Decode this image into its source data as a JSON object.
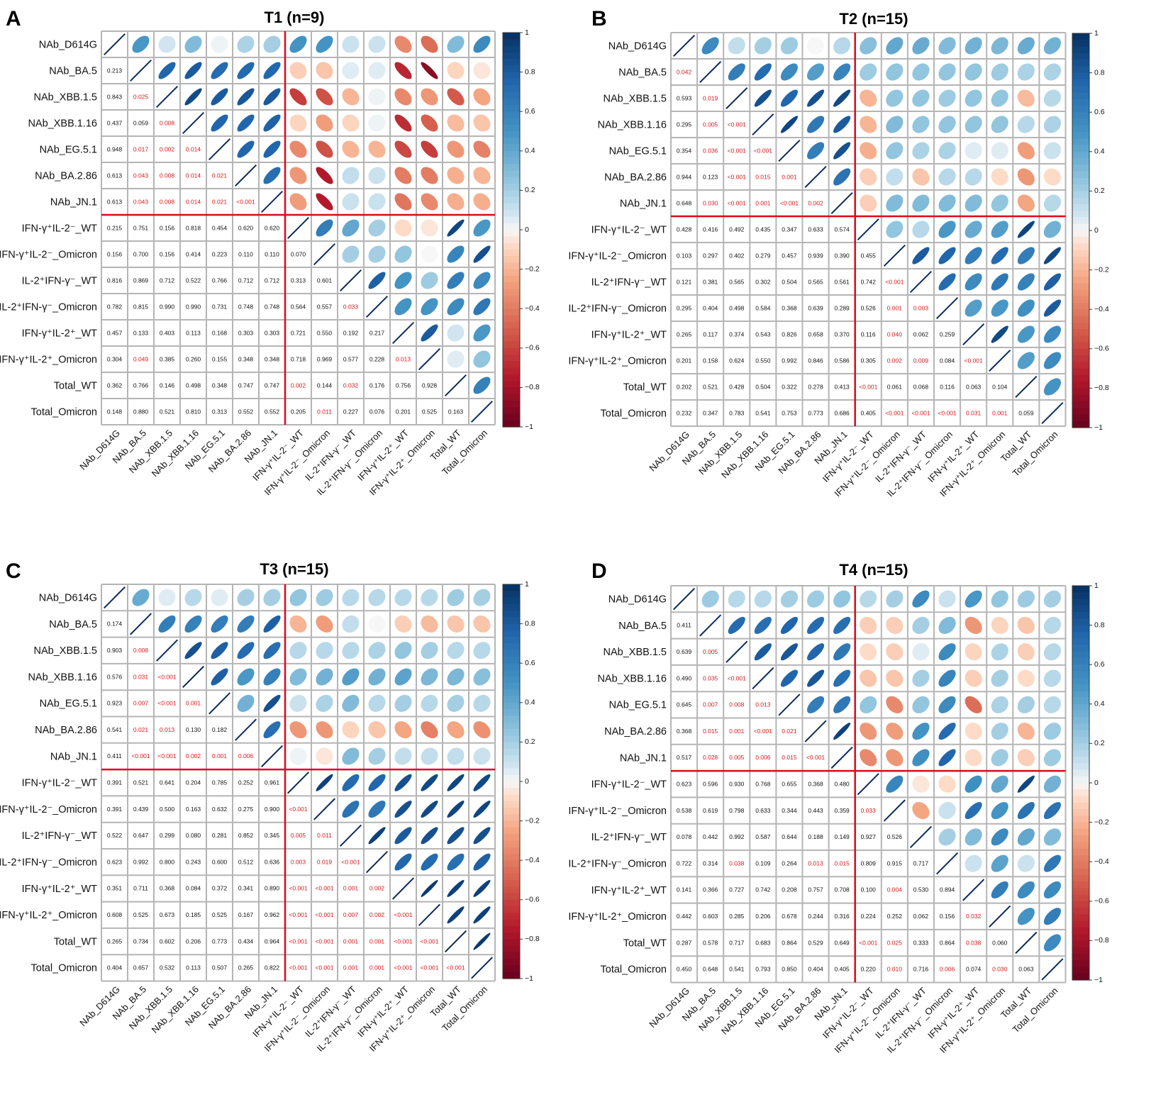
{
  "figure": {
    "variables": [
      "NAb_D614G",
      "NAb_BA.5",
      "NAb_XBB.1.5",
      "NAb_XBB.1.16",
      "NAb_EG.5.1",
      "NAb_BA.2.86",
      "NAb_JN.1",
      "IFN-γ⁺IL-2⁻_WT",
      "IFN-γ⁺IL-2⁻_Omicron",
      "IL-2⁺IFN-γ⁻_WT",
      "IL-2⁺IFN-γ⁻_Omicron",
      "IFN-γ⁺IL-2⁺_WT",
      "IFN-γ⁺IL-2⁺_Omicron",
      "Total_WT",
      "Total_Omicron"
    ],
    "colorbar_ticks": [
      "1",
      "0.8",
      "0.6",
      "0.4",
      "0.2",
      "0",
      "−0.2",
      "−0.4",
      "−0.6",
      "−0.8",
      "−1"
    ],
    "colors": {
      "positive": "#053061",
      "negative": "#67001f",
      "neutral": "#f7f7f7",
      "grid": "#b5b5b5",
      "divider": "#e2061b",
      "significant_text": "#d7191c",
      "normal_text": "#111111"
    }
  },
  "chart_data": [
    {
      "type": "heatmap",
      "panel": "A",
      "title": "T1 (n=9)",
      "split_after": 7,
      "correlation_range": [
        -1,
        1
      ],
      "upper_r": [
        [
          0.48,
          0.08,
          0.3,
          0.02,
          0.18,
          0.2,
          0.5,
          0.5,
          0.1,
          0.1,
          -0.35,
          -0.45,
          0.3,
          0.55
        ],
        [
          0.75,
          0.8,
          0.72,
          0.73,
          0.74,
          -0.12,
          -0.15,
          0.05,
          0.05,
          -0.7,
          -0.88,
          -0.1,
          -0.05
        ],
        [
          0.88,
          0.8,
          0.82,
          0.8,
          -0.62,
          -0.55,
          -0.2,
          0.02,
          -0.35,
          -0.3,
          -0.52,
          -0.25
        ],
        [
          0.75,
          0.75,
          0.77,
          -0.1,
          -0.28,
          -0.1,
          0.02,
          -0.68,
          -0.5,
          -0.18,
          -0.15
        ],
        [
          0.75,
          0.75,
          -0.35,
          -0.55,
          -0.2,
          -0.2,
          -0.58,
          -0.62,
          -0.3,
          -0.38
        ],
        [
          0.7,
          -0.3,
          -0.75,
          0.12,
          0.1,
          -0.4,
          -0.4,
          -0.22,
          -0.2
        ],
        [
          -0.28,
          -0.75,
          0.1,
          0.1,
          -0.42,
          -0.35,
          -0.22,
          -0.22
        ],
        [
          0.62,
          0.4,
          0.2,
          -0.08,
          -0.05,
          0.9,
          0.48
        ],
        [
          0.2,
          0.2,
          0.25,
          0.0,
          0.58,
          0.85
        ],
        [
          0.78,
          0.5,
          0.22,
          0.62,
          0.55
        ],
        [
          0.5,
          0.5,
          0.55,
          0.65
        ],
        [
          0.8,
          0.08,
          0.48
        ],
        [
          0.05,
          0.25
        ],
        [
          0.6
        ]
      ],
      "lower_p": [
        [
          "0.213"
        ],
        [
          "0.843",
          "0.025"
        ],
        [
          "0.437",
          "0.059",
          "0.008"
        ],
        [
          "0.948",
          "0.017",
          "0.002",
          "0.014"
        ],
        [
          "0.613",
          "0.043",
          "0.008",
          "0.014",
          "0.021"
        ],
        [
          "0.613",
          "0.043",
          "0.008",
          "0.014",
          "0.021",
          "<0.001"
        ],
        [
          "0.215",
          "0.751",
          "0.156",
          "0.818",
          "0.454",
          "0.620",
          "0.620"
        ],
        [
          "0.156",
          "0.700",
          "0.156",
          "0.414",
          "0.223",
          "0.110",
          "0.110",
          "0.070"
        ],
        [
          "0.816",
          "0.869",
          "0.712",
          "0.522",
          "0.766",
          "0.712",
          "0.712",
          "0.313",
          "0.601"
        ],
        [
          "0.782",
          "0.815",
          "0.990",
          "0.990",
          "0.731",
          "0.748",
          "0.748",
          "0.564",
          "0.557",
          "0.033"
        ],
        [
          "0.457",
          "0.133",
          "0.403",
          "0.113",
          "0.168",
          "0.303",
          "0.303",
          "0.721",
          "0.550",
          "0.192",
          "0.217"
        ],
        [
          "0.304",
          "0.049",
          "0.385",
          "0.260",
          "0.155",
          "0.348",
          "0.348",
          "0.718",
          "0.969",
          "0.577",
          "0.228",
          "0.013"
        ],
        [
          "0.362",
          "0.766",
          "0.146",
          "0.498",
          "0.348",
          "0.747",
          "0.747",
          "0.002",
          "0.144",
          "0.032",
          "0.176",
          "0.756",
          "0.928"
        ],
        [
          "0.148",
          "0.880",
          "0.521",
          "0.810",
          "0.313",
          "0.552",
          "0.552",
          "0.205",
          "0.011",
          "0.227",
          "0.076",
          "0.201",
          "0.525",
          "0.163"
        ]
      ]
    },
    {
      "type": "heatmap",
      "panel": "B",
      "title": "T2 (n=15)",
      "split_after": 7,
      "correlation_range": [
        -1,
        1
      ],
      "upper_r": [
        [
          0.55,
          0.12,
          0.2,
          0.22,
          0.0,
          0.15,
          0.28,
          0.4,
          0.38,
          0.3,
          0.35,
          0.32,
          0.38,
          0.35
        ],
        [
          0.62,
          0.72,
          0.55,
          0.45,
          0.58,
          0.22,
          0.25,
          0.25,
          0.25,
          0.25,
          0.22,
          0.18,
          0.18
        ],
        [
          0.85,
          0.75,
          0.85,
          0.88,
          -0.2,
          0.25,
          0.25,
          0.22,
          0.25,
          0.25,
          -0.18,
          0.15
        ],
        [
          0.9,
          0.65,
          0.8,
          -0.2,
          0.3,
          0.25,
          0.25,
          0.25,
          0.25,
          0.15,
          0.18
        ],
        [
          0.62,
          0.85,
          -0.22,
          0.25,
          0.18,
          0.18,
          0.05,
          0.05,
          -0.28,
          0.1
        ],
        [
          0.68,
          -0.12,
          0.12,
          -0.15,
          0.15,
          0.15,
          -0.08,
          -0.3,
          -0.08
        ],
        [
          -0.12,
          0.3,
          0.3,
          0.3,
          0.3,
          0.25,
          -0.25,
          0.15
        ],
        [
          0.25,
          0.15,
          0.48,
          0.38,
          0.45,
          0.9,
          0.35
        ],
        [
          0.8,
          0.75,
          0.62,
          0.72,
          0.62,
          0.88
        ],
        [
          0.72,
          0.55,
          0.65,
          0.6,
          0.78
        ],
        [
          0.45,
          0.48,
          0.52,
          0.8
        ],
        [
          0.88,
          0.48,
          0.55
        ],
        [
          0.45,
          0.55
        ],
        [
          0.5
        ]
      ],
      "lower_p": [
        [
          "0.042"
        ],
        [
          "0.593",
          "0.019"
        ],
        [
          "0.295",
          "0.005",
          "<0.001"
        ],
        [
          "0.354",
          "0.036",
          "<0.001",
          "<0.001"
        ],
        [
          "0.944",
          "0.123",
          "<0.001",
          "0.015",
          "0.001"
        ],
        [
          "0.648",
          "0.030",
          "<0.001",
          "0.001",
          "<0.001",
          "0.002"
        ],
        [
          "0.428",
          "0.416",
          "0.492",
          "0.435",
          "0.347",
          "0.633",
          "0.574"
        ],
        [
          "0.103",
          "0.297",
          "0.402",
          "0.279",
          "0.457",
          "0.939",
          "0.390",
          "0.455"
        ],
        [
          "0.121",
          "0.381",
          "0.565",
          "0.302",
          "0.504",
          "0.565",
          "0.561",
          "0.742",
          "<0.001"
        ],
        [
          "0.295",
          "0.404",
          "0.498",
          "0.584",
          "0.368",
          "0.639",
          "0.289",
          "0.526",
          "0.001",
          "0.003"
        ],
        [
          "0.265",
          "0.117",
          "0.374",
          "0.543",
          "0.826",
          "0.658",
          "0.370",
          "0.116",
          "0.040",
          "0.062",
          "0.259"
        ],
        [
          "0.201",
          "0.158",
          "0.624",
          "0.550",
          "0.992",
          "0.846",
          "0.586",
          "0.305",
          "0.002",
          "0.009",
          "0.084",
          "<0.001"
        ],
        [
          "0.202",
          "0.521",
          "0.428",
          "0.504",
          "0.322",
          "0.278",
          "0.413",
          "<0.001",
          "0.061",
          "0.068",
          "0.116",
          "0.063",
          "0.104"
        ],
        [
          "0.232",
          "0.347",
          "0.783",
          "0.541",
          "0.753",
          "0.773",
          "0.686",
          "0.405",
          "<0.001",
          "<0.001",
          "<0.001",
          "0.031",
          "0.001",
          "0.059"
        ]
      ]
    },
    {
      "type": "heatmap",
      "panel": "C",
      "title": "T3 (n=15)",
      "split_after": 7,
      "correlation_range": [
        -1,
        1
      ],
      "upper_r": [
        [
          0.38,
          0.05,
          0.15,
          0.05,
          0.2,
          0.2,
          0.25,
          0.22,
          0.15,
          0.15,
          0.15,
          0.15,
          0.22,
          0.2
        ],
        [
          0.62,
          0.6,
          0.62,
          0.62,
          0.78,
          -0.2,
          -0.28,
          0.12,
          0.0,
          -0.12,
          -0.18,
          -0.15,
          -0.15
        ],
        [
          0.85,
          0.78,
          0.72,
          0.7,
          0.15,
          0.15,
          0.15,
          0.18,
          0.25,
          0.2,
          0.15,
          0.15
        ],
        [
          0.78,
          0.48,
          0.6,
          0.3,
          0.35,
          0.45,
          0.35,
          0.42,
          0.32,
          0.32,
          0.28
        ],
        [
          0.35,
          0.85,
          0.1,
          0.18,
          0.3,
          0.15,
          0.2,
          0.15,
          0.2,
          0.15
        ],
        [
          0.7,
          -0.3,
          -0.3,
          -0.1,
          -0.15,
          -0.25,
          -0.38,
          -0.25,
          -0.32
        ],
        [
          0.02,
          -0.05,
          0.3,
          0.2,
          0.12,
          0.12,
          0.12,
          0.1
        ],
        [
          0.92,
          0.72,
          0.75,
          0.85,
          0.88,
          0.9,
          0.88
        ],
        [
          0.68,
          0.65,
          0.85,
          0.88,
          0.9,
          0.9
        ],
        [
          0.92,
          0.8,
          0.85,
          0.85,
          0.85
        ],
        [
          0.75,
          0.72,
          0.7,
          0.78
        ],
        [
          0.95,
          0.92,
          0.92
        ],
        [
          0.92,
          0.92
        ],
        [
          0.95
        ]
      ],
      "lower_p": [
        [
          "0.174"
        ],
        [
          "0.903",
          "0.008"
        ],
        [
          "0.576",
          "0.031",
          "<0.001"
        ],
        [
          "0.923",
          "0.007",
          "<0.001",
          "0.001"
        ],
        [
          "0.541",
          "0.021",
          "0.013",
          "0.130",
          "0.182"
        ],
        [
          "0.411",
          "<0.001",
          "<0.001",
          "0.002",
          "0.001",
          "0.006"
        ],
        [
          "0.391",
          "0.521",
          "0.641",
          "0.204",
          "0.785",
          "0.252",
          "0.961"
        ],
        [
          "0.391",
          "0.439",
          "0.500",
          "0.163",
          "0.632",
          "0.275",
          "0.900",
          "<0.001"
        ],
        [
          "0.522",
          "0.647",
          "0.299",
          "0.080",
          "0.281",
          "0.852",
          "0.345",
          "0.005",
          "0.011"
        ],
        [
          "0.623",
          "0.992",
          "0.800",
          "0.243",
          "0.600",
          "0.512",
          "0.636",
          "0.003",
          "0.019",
          "<0.001"
        ],
        [
          "0.351",
          "0.711",
          "0.368",
          "0.084",
          "0.372",
          "0.341",
          "0.890",
          "<0.001",
          "<0.001",
          "0.001",
          "0.002"
        ],
        [
          "0.608",
          "0.525",
          "0.673",
          "0.185",
          "0.525",
          "0.167",
          "0.962",
          "<0.001",
          "<0.001",
          "0.007",
          "0.002",
          "<0.001"
        ],
        [
          "0.265",
          "0.734",
          "0.602",
          "0.206",
          "0.773",
          "0.434",
          "0.964",
          "<0.001",
          "<0.001",
          "0.001",
          "0.001",
          "<0.001",
          "<0.001"
        ],
        [
          "0.404",
          "0.657",
          "0.532",
          "0.113",
          "0.507",
          "0.265",
          "0.822",
          "<0.001",
          "<0.001",
          "0.001",
          "0.001",
          "<0.001",
          "<0.001",
          "<0.001"
        ]
      ]
    },
    {
      "type": "heatmap",
      "panel": "D",
      "title": "T4 (n=15)",
      "split_after": 7,
      "correlation_range": [
        -1,
        1
      ],
      "upper_r": [
        [
          0.22,
          0.15,
          0.15,
          0.2,
          0.22,
          0.25,
          0.15,
          0.2,
          0.55,
          0.1,
          0.48,
          0.25,
          0.22,
          0.2
        ],
        [
          0.72,
          0.7,
          0.75,
          0.72,
          0.7,
          -0.12,
          -0.12,
          0.2,
          0.3,
          -0.3,
          -0.1,
          -0.15,
          0.15
        ],
        [
          0.8,
          0.82,
          0.75,
          0.65,
          -0.08,
          -0.12,
          0.05,
          0.55,
          -0.1,
          0.18,
          -0.12,
          0.15
        ],
        [
          0.75,
          0.82,
          0.7,
          -0.15,
          -0.15,
          0.2,
          0.58,
          -0.12,
          0.2,
          -0.08,
          0.15
        ],
        [
          0.62,
          0.65,
          0.25,
          -0.35,
          0.25,
          0.55,
          -0.45,
          0.18,
          0.2,
          0.15
        ],
        [
          0.92,
          -0.3,
          -0.28,
          0.5,
          0.72,
          -0.08,
          0.2,
          -0.2,
          0.22
        ],
        [
          -0.35,
          -0.3,
          0.52,
          0.75,
          -0.08,
          0.22,
          -0.12,
          0.22
        ],
        [
          0.58,
          -0.05,
          -0.08,
          0.52,
          0.4,
          0.9,
          0.35
        ],
        [
          -0.25,
          0.1,
          0.7,
          0.5,
          0.68,
          0.68
        ],
        [
          0.2,
          0.3,
          0.55,
          0.4,
          0.3
        ],
        [
          0.1,
          0.42,
          0.1,
          0.65
        ],
        [
          0.62,
          0.55,
          0.55
        ],
        [
          0.5,
          0.62
        ],
        [
          0.55
        ]
      ],
      "lower_p": [
        [
          "0.411"
        ],
        [
          "0.639",
          "0.005"
        ],
        [
          "0.490",
          "0.035",
          "<0.001"
        ],
        [
          "0.645",
          "0.007",
          "0.008",
          "0.013"
        ],
        [
          "0.368",
          "0.015",
          "0.001",
          "<0.001",
          "0.021"
        ],
        [
          "0.517",
          "0.028",
          "0.005",
          "0.006",
          "0.015",
          "<0.001"
        ],
        [
          "0.623",
          "0.596",
          "0.930",
          "0.768",
          "0.655",
          "0.368",
          "0.480"
        ],
        [
          "0.538",
          "0.619",
          "0.798",
          "0.633",
          "0.344",
          "0.443",
          "0.359",
          "0.033"
        ],
        [
          "0.078",
          "0.442",
          "0.992",
          "0.587",
          "0.644",
          "0.188",
          "0.149",
          "0.927",
          "0.526"
        ],
        [
          "0.722",
          "0.314",
          "0.038",
          "0.109",
          "0.264",
          "0.013",
          "0.015",
          "0.809",
          "0.915",
          "0.717"
        ],
        [
          "0.141",
          "0.366",
          "0.727",
          "0.742",
          "0.208",
          "0.757",
          "0.708",
          "0.100",
          "0.004",
          "0.530",
          "0.894"
        ],
        [
          "0.442",
          "0.603",
          "0.285",
          "0.206",
          "0.678",
          "0.244",
          "0.316",
          "0.224",
          "0.252",
          "0.062",
          "0.156",
          "0.032"
        ],
        [
          "0.287",
          "0.578",
          "0.717",
          "0.683",
          "0.864",
          "0.529",
          "0.649",
          "<0.001",
          "0.025",
          "0.333",
          "0.864",
          "0.038",
          "0.060"
        ],
        [
          "0.450",
          "0.648",
          "0.541",
          "0.793",
          "0.850",
          "0.404",
          "0.405",
          "0.220",
          "0.010",
          "0.716",
          "0.006",
          "0.074",
          "0.030",
          "0.063"
        ]
      ]
    }
  ]
}
